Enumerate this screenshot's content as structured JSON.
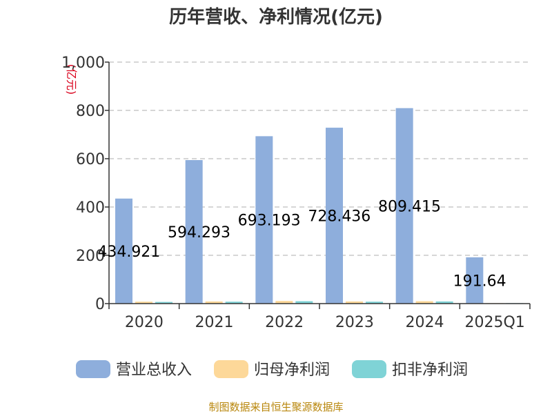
{
  "chart_data": {
    "type": "bar",
    "title": "历年营收、净利情况(亿元)",
    "ylabel": "(亿元)",
    "xlabel": "",
    "categories": [
      "2020",
      "2021",
      "2022",
      "2023",
      "2024",
      "2025Q1"
    ],
    "series": [
      {
        "name": "营业总收入",
        "color": "#8eaedc",
        "values": [
          434.921,
          594.293,
          693.193,
          728.436,
          809.415,
          191.64
        ]
      },
      {
        "name": "归母净利润",
        "color": "#fdd899",
        "values": [
          8,
          9,
          11,
          9,
          10,
          2
        ]
      },
      {
        "name": "扣非净利润",
        "color": "#7fd3d6",
        "values": [
          7,
          8,
          10,
          8,
          9,
          2
        ]
      }
    ],
    "data_labels": [
      "434.921",
      "594.293",
      "693.193",
      "728.436",
      "809.415",
      "191.64"
    ],
    "ylim": [
      0,
      1000
    ],
    "yticks": [
      "0",
      "200",
      "400",
      "600",
      "800",
      "1,000"
    ],
    "grid": true,
    "legend_position": "bottom"
  },
  "source": "制图数据来自恒生聚源数据库"
}
